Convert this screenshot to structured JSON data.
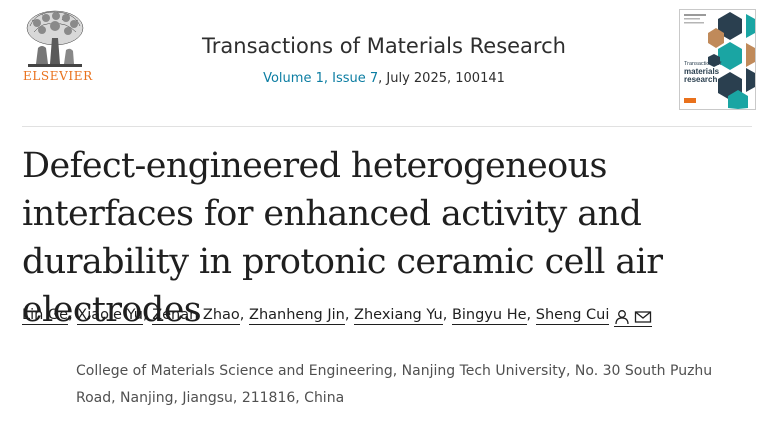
{
  "publisher": {
    "name": "ELSEVIER",
    "logo_icon": "elsevier-tree-logo",
    "brand_color": "#e9711c"
  },
  "journal": {
    "title": "Transactions of Materials Research",
    "volume_issue_link": "Volume 1, Issue 7",
    "date_article": ", July 2025, 100141",
    "cover": {
      "line1": "Transactions of",
      "line2": "materials",
      "line3": "research"
    },
    "link_color": "#0c7da2"
  },
  "article": {
    "title": "Defect-engineered heterogeneous interfaces for enhanced activity and durability in protonic ceramic cell air electrodes"
  },
  "authors": [
    {
      "name": "Lin Ge"
    },
    {
      "name": "Xiaole Yu"
    },
    {
      "name": "Zenan Zhao"
    },
    {
      "name": "Zhanheng Jin"
    },
    {
      "name": "Zhexiang Yu"
    },
    {
      "name": "Bingyu He"
    },
    {
      "name": "Sheng Cui",
      "icons": [
        "person-icon",
        "envelope-icon"
      ]
    }
  ],
  "affiliation": "College of Materials Science and Engineering, Nanjing Tech University, No. 30 South Puzhu Road, Nanjing, Jiangsu, 211816, China"
}
